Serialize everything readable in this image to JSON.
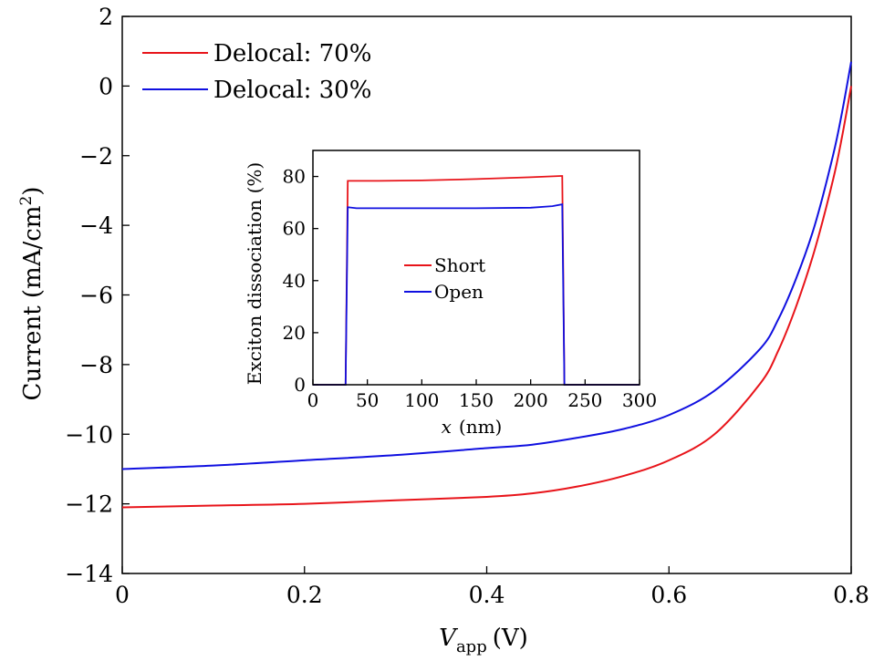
{
  "chart_data": [
    {
      "type": "line",
      "xlabel_main": "V",
      "xlabel_sub": "app",
      "xlabel_unit": "(V)",
      "ylabel": "Current (mA/cm",
      "ylabel_sup": "2",
      "ylabel_close": ")",
      "xlim": [
        0,
        0.8
      ],
      "ylim": [
        -14,
        2
      ],
      "xticks": [
        0,
        0.2,
        0.4,
        0.6,
        0.8
      ],
      "xtick_labels": [
        "0",
        "0.2",
        "0.4",
        "0.6",
        "0.8"
      ],
      "yticks": [
        2,
        0,
        -2,
        -4,
        -6,
        -8,
        -10,
        -12,
        -14
      ],
      "ytick_labels": [
        "2",
        "0",
        "−2",
        "−4",
        "−6",
        "−8",
        "−10",
        "−12",
        "−14"
      ],
      "legend_position": "top-left",
      "series": [
        {
          "name": "Delocal: 70%",
          "color": "#e8141a",
          "x": [
            0,
            0.1,
            0.2,
            0.3,
            0.4,
            0.45,
            0.5,
            0.55,
            0.6,
            0.65,
            0.7,
            0.72,
            0.74,
            0.76,
            0.78,
            0.79,
            0.8
          ],
          "y": [
            -12.1,
            -12.05,
            -12.0,
            -11.9,
            -11.8,
            -11.7,
            -11.5,
            -11.2,
            -10.75,
            -10.0,
            -8.55,
            -7.6,
            -6.3,
            -4.7,
            -2.7,
            -1.45,
            0.0
          ]
        },
        {
          "name": "Delocal: 30%",
          "color": "#1010e0",
          "x": [
            0,
            0.1,
            0.2,
            0.3,
            0.4,
            0.45,
            0.5,
            0.55,
            0.6,
            0.65,
            0.7,
            0.72,
            0.74,
            0.76,
            0.78,
            0.79,
            0.8
          ],
          "y": [
            -11.0,
            -10.9,
            -10.75,
            -10.6,
            -10.4,
            -10.3,
            -10.1,
            -9.85,
            -9.45,
            -8.75,
            -7.55,
            -6.7,
            -5.5,
            -4.0,
            -2.0,
            -0.75,
            0.7
          ]
        }
      ]
    },
    {
      "type": "line",
      "xlabel_main": "x",
      "xlabel_unit": "(nm)",
      "ylabel": "Exciton dissociation (%)",
      "xlim": [
        0,
        300
      ],
      "ylim": [
        0,
        90
      ],
      "xticks": [
        0,
        50,
        100,
        150,
        200,
        250,
        300
      ],
      "xtick_labels": [
        "0",
        "50",
        "100",
        "150",
        "200",
        "250",
        "300"
      ],
      "yticks": [
        0,
        20,
        40,
        60,
        80
      ],
      "ytick_labels": [
        "0",
        "20",
        "40",
        "60",
        "80"
      ],
      "legend_position": "center",
      "series": [
        {
          "name": "Short",
          "color": "#e8141a",
          "x": [
            0,
            30,
            32,
            60,
            100,
            150,
            200,
            228,
            229,
            231,
            300
          ],
          "y": [
            0,
            0,
            78.3,
            78.3,
            78.5,
            79.0,
            79.7,
            80.2,
            80.2,
            0,
            0
          ]
        },
        {
          "name": "Open",
          "color": "#1010e0",
          "x": [
            0,
            30,
            32,
            40,
            100,
            150,
            200,
            220,
            229,
            231,
            300
          ],
          "y": [
            0,
            0,
            68.2,
            67.8,
            67.8,
            67.8,
            68.0,
            68.6,
            69.3,
            0,
            0
          ]
        }
      ]
    }
  ]
}
